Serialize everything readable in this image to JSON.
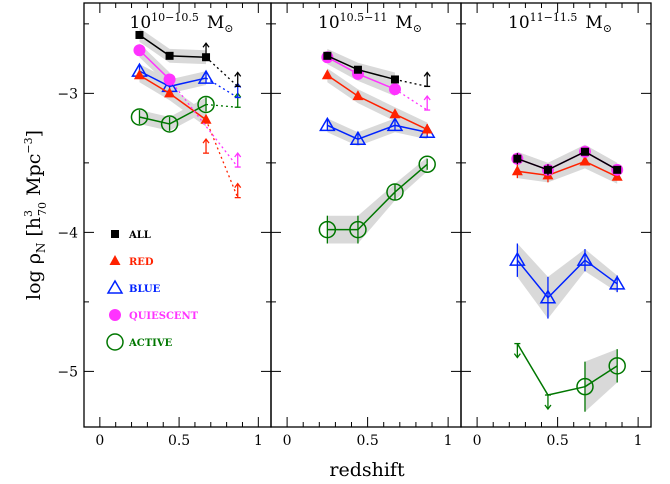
{
  "chart_data": {
    "type": "scatter",
    "xlabel": "redshift",
    "ylabel": "log ρ",
    "ylabel_sub": "N",
    "ylabel_bracket_open": "[h",
    "ylabel_h_sup": "3",
    "ylabel_h_sub": "70",
    "ylabel_mpc": " Mpc",
    "ylabel_mpc_sup": "−3",
    "ylabel_bracket_close": "]",
    "xlim": [
      -0.1,
      1.08
    ],
    "ylim": [
      -5.4,
      -2.35
    ],
    "x_ticks": [
      0,
      0.5,
      1
    ],
    "x_tick_labels": [
      "0",
      "0.5",
      "1"
    ],
    "y_ticks": [
      -5,
      -4,
      -3
    ],
    "y_tick_labels": [
      "−5",
      "−4",
      "−3"
    ],
    "legend_position": "left",
    "legend": [
      {
        "key": "all",
        "label": "ALL",
        "marker": "square",
        "color": "#000000"
      },
      {
        "key": "red",
        "label": "RED",
        "marker": "triangle-filled",
        "color": "#ff2200"
      },
      {
        "key": "blue",
        "label": "BLUE",
        "marker": "triangle-open",
        "color": "#0022ff"
      },
      {
        "key": "quiescent",
        "label": "QUIESCENT",
        "marker": "circle-filled",
        "color": "#ff33ff"
      },
      {
        "key": "active",
        "label": "ACTIVE",
        "marker": "circle-open",
        "color": "#007700"
      }
    ],
    "panels": [
      {
        "title_base": "10",
        "title_sup": "10−10.5",
        "title_unit": "M",
        "title_unit_sub": "⊙",
        "series": [
          {
            "key": "all",
            "x": [
              0.25,
              0.44,
              0.67
            ],
            "y": [
              -2.58,
              -2.73,
              -2.74
            ],
            "err": [
              0.02,
              0.02,
              0.02
            ],
            "limits": [
              {
                "x": 0.67,
                "y": -2.74,
                "dir": "up"
              },
              {
                "x": 0.87,
                "y": -2.95,
                "dir": "up"
              }
            ],
            "dotted_to": {
              "x": 0.87,
              "y": -2.95
            }
          },
          {
            "key": "red",
            "x": [
              0.25,
              0.44,
              0.67
            ],
            "y": [
              -2.87,
              -3.0,
              -3.19
            ],
            "err": [
              0.02,
              0.02,
              0.03
            ],
            "limits": [
              {
                "x": 0.67,
                "y": -3.43,
                "dir": "up"
              },
              {
                "x": 0.87,
                "y": -3.75,
                "dir": "up"
              }
            ],
            "dotted_to": {
              "x": 0.87,
              "y": -3.75
            }
          },
          {
            "key": "blue",
            "x": [
              0.25,
              0.44,
              0.67
            ],
            "y": [
              -2.84,
              -2.95,
              -2.89
            ],
            "err": [
              0.04,
              0.04,
              0.04
            ],
            "limits": [
              {
                "x": 0.87,
                "y": -3.03,
                "dir": "up"
              }
            ],
            "dotted_to": {
              "x": 0.87,
              "y": -3.03
            }
          },
          {
            "key": "quiescent",
            "x": [
              0.25,
              0.44
            ],
            "y": [
              -2.69,
              -2.9
            ],
            "err": [
              0.02,
              0.02
            ],
            "limits": [
              {
                "x": 0.87,
                "y": -3.53,
                "dir": "up"
              }
            ],
            "dotted_to": {
              "x": 0.87,
              "y": -3.53
            }
          },
          {
            "key": "active",
            "x": [
              0.25,
              0.44,
              0.67
            ],
            "y": [
              -3.17,
              -3.22,
              -3.08
            ],
            "err": [
              0.05,
              0.05,
              0.05
            ],
            "limits": [
              {
                "x": 0.87,
                "y": -3.1,
                "dir": "up"
              }
            ],
            "dotted_to": {
              "x": 0.87,
              "y": -3.1
            }
          }
        ]
      },
      {
        "title_base": "10",
        "title_sup": "10.5−11",
        "title_unit": "M",
        "title_unit_sub": "⊙",
        "series": [
          {
            "key": "all",
            "x": [
              0.25,
              0.44,
              0.67
            ],
            "y": [
              -2.73,
              -2.83,
              -2.9
            ],
            "err": [
              0.02,
              0.02,
              0.02
            ],
            "limits": [
              {
                "x": 0.87,
                "y": -2.95,
                "dir": "up"
              }
            ],
            "dotted_to": {
              "x": 0.87,
              "y": -2.95
            }
          },
          {
            "key": "red",
            "x": [
              0.25,
              0.44,
              0.67,
              0.87
            ],
            "y": [
              -2.87,
              -3.02,
              -3.15,
              -3.26
            ],
            "err": [
              0.03,
              0.03,
              0.03,
              0.04
            ]
          },
          {
            "key": "blue",
            "x": [
              0.25,
              0.44,
              0.67,
              0.87
            ],
            "y": [
              -3.23,
              -3.33,
              -3.23,
              -3.28
            ],
            "err": [
              0.04,
              0.04,
              0.04,
              0.04
            ]
          },
          {
            "key": "quiescent",
            "x": [
              0.25,
              0.44,
              0.67
            ],
            "y": [
              -2.74,
              -2.86,
              -2.97
            ],
            "err": [
              0.02,
              0.02,
              0.02
            ],
            "limits": [
              {
                "x": 0.87,
                "y": -3.12,
                "dir": "up"
              }
            ],
            "dotted_to": {
              "x": 0.87,
              "y": -3.12
            }
          },
          {
            "key": "active",
            "x": [
              0.25,
              0.44,
              0.67,
              0.87
            ],
            "y": [
              -3.98,
              -3.98,
              -3.71,
              -3.51
            ],
            "err": [
              0.1,
              0.1,
              0.06,
              0.04
            ]
          }
        ]
      },
      {
        "title_base": "10",
        "title_sup": "11−11.5",
        "title_unit": "M",
        "title_unit_sub": "⊙",
        "series": [
          {
            "key": "all",
            "x": [
              0.25,
              0.44,
              0.67,
              0.87
            ],
            "y": [
              -3.47,
              -3.55,
              -3.42,
              -3.55
            ],
            "err": [
              0.04,
              0.04,
              0.03,
              0.03
            ]
          },
          {
            "key": "red",
            "x": [
              0.25,
              0.44,
              0.67,
              0.87
            ],
            "y": [
              -3.56,
              -3.59,
              -3.49,
              -3.6
            ],
            "err": [
              0.05,
              0.05,
              0.03,
              0.03
            ]
          },
          {
            "key": "blue",
            "x": [
              0.25,
              0.44,
              0.67,
              0.87
            ],
            "y": [
              -4.2,
              -4.47,
              -4.2,
              -4.37
            ],
            "err": [
              0.12,
              0.15,
              0.08,
              0.06
            ]
          },
          {
            "key": "quiescent",
            "x": [
              0.25,
              0.44,
              0.67,
              0.87
            ],
            "y": [
              -3.47,
              -3.55,
              -3.42,
              -3.55
            ],
            "err": [
              0.03,
              0.03,
              0.02,
              0.02
            ]
          },
          {
            "key": "active",
            "x": [
              0.67,
              0.87
            ],
            "y": [
              -5.11,
              -4.96
            ],
            "err": [
              0.18,
              0.12
            ],
            "limits": [
              {
                "x": 0.25,
                "y": -4.8,
                "dir": "down"
              },
              {
                "x": 0.44,
                "y": -5.17,
                "dir": "down"
              }
            ],
            "solid_chain": [
              {
                "x": 0.25,
                "y": -4.8
              },
              {
                "x": 0.44,
                "y": -5.17
              },
              {
                "x": 0.67,
                "y": -5.11
              }
            ]
          }
        ]
      }
    ]
  }
}
